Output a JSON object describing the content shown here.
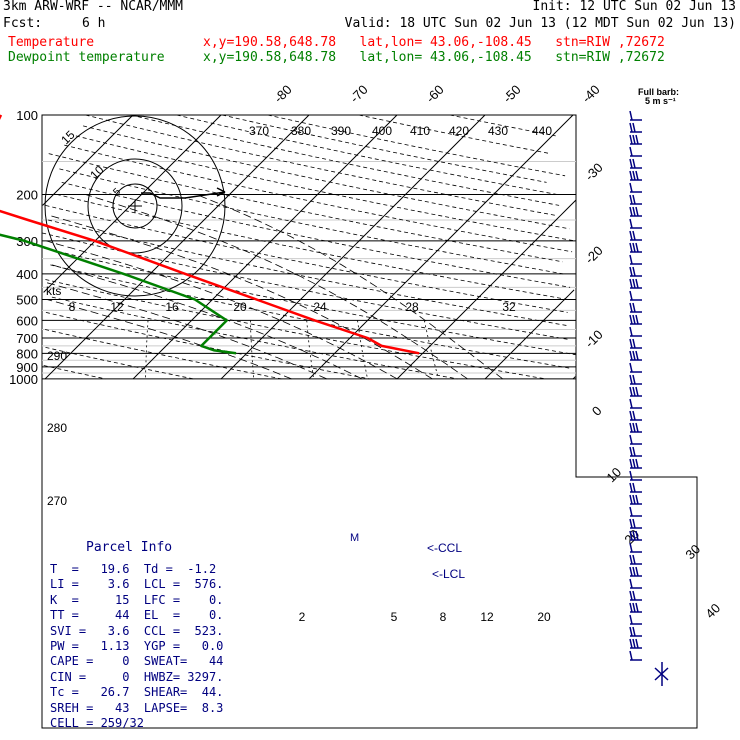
{
  "header": {
    "model": "3km ARW-WRF -- NCAR/MMM",
    "init": "Init: 12 UTC Sun 02 Jun 13",
    "fcst_label": "Fcst:",
    "fcst_value": "6 h",
    "valid": "Valid: 18 UTC Sun 02 Jun 13 (12 MDT Sun 02 Jun 13)",
    "temp_label": "Temperature",
    "temp_info": "x,y=190.58,648.78   lat,lon= 43.06,-108.45   stn=RIW ,72672",
    "dew_label": "Dewpoint temperature",
    "dew_info": "x,y=190.58,648.78   lat,lon= 43.06,-108.45   stn=RIW ,72672",
    "barb_key_1": "Full barb:",
    "barb_key_2": "5 m s⁻¹"
  },
  "colors": {
    "temperature": "#ff0000",
    "dewpoint": "#008000",
    "text_blue": "#000080",
    "grid": "#000000"
  },
  "chart_data": {
    "type": "skew-t log-p sounding",
    "pressure_levels": [
      100,
      200,
      300,
      400,
      500,
      600,
      700,
      800,
      900,
      1000
    ],
    "temperature_tick_labels": [
      "-80",
      "-70",
      "-60",
      "-50",
      "-40",
      "-30",
      "-20",
      "-10",
      "0",
      "10",
      "20",
      "30",
      "40"
    ],
    "theta_labels": [
      "370",
      "380",
      "390",
      "400",
      "410",
      "420",
      "430",
      "440"
    ],
    "mixing_ratio_labels": [
      "2",
      "5",
      "8",
      "12",
      "20"
    ],
    "hodograph": {
      "speed_axis_label": "kts",
      "speed_tick_labels": [
        "8",
        "12",
        "16",
        "20",
        "24",
        "28",
        "32"
      ],
      "ring_labels": [
        "5",
        "10",
        "15"
      ],
      "left_labels": [
        "290",
        "280",
        "270"
      ]
    },
    "annotations": [
      "<-CCL",
      "<-LCL",
      "M"
    ],
    "temperature_profile": [
      {
        "p": 800,
        "t": 19.6
      },
      {
        "p": 750,
        "t": 14.5
      },
      {
        "p": 700,
        "t": 12.0
      },
      {
        "p": 600,
        "t": 4.0
      },
      {
        "p": 500,
        "t": -5.0
      },
      {
        "p": 400,
        "t": -16.0
      },
      {
        "p": 300,
        "t": -30.0
      },
      {
        "p": 250,
        "t": -40.0
      },
      {
        "p": 200,
        "t": -52.0
      },
      {
        "p": 180,
        "t": -55.0
      },
      {
        "p": 150,
        "t": -55.0
      },
      {
        "p": 125,
        "t": -53.5
      },
      {
        "p": 100,
        "t": -55.0
      }
    ],
    "dewpoint_profile": [
      {
        "p": 800,
        "t": -1.2
      },
      {
        "p": 780,
        "t": -4.0
      },
      {
        "p": 750,
        "t": -6.0
      },
      {
        "p": 700,
        "t": -6.0
      },
      {
        "p": 600,
        "t": -6.0
      },
      {
        "p": 500,
        "t": -12.0
      },
      {
        "p": 400,
        "t": -23.0
      },
      {
        "p": 300,
        "t": -38.0
      },
      {
        "p": 250,
        "t": -50.0
      },
      {
        "p": 200,
        "t": -63.0
      },
      {
        "p": 150,
        "t": -73.0
      },
      {
        "p": 125,
        "t": -77.5
      },
      {
        "p": 100,
        "t": -78.0
      }
    ]
  },
  "parcel": {
    "title": "Parcel Info",
    "rows": [
      "T  =   19.6  Td =  -1.2",
      "LI =    3.6  LCL =  576.",
      "K  =     15  LFC =    0.",
      "TT =     44  EL  =    0.",
      "SVI =   3.6  CCL =  523.",
      "PW =   1.13  YGP =   0.0",
      "CAPE =    0  SWEAT=   44",
      "CIN =     0  HWBZ= 3297.",
      "Tc =   26.7  SHEAR=  44.",
      "SREH =   43  LAPSE=  8.3",
      "CELL = 259/32"
    ]
  }
}
